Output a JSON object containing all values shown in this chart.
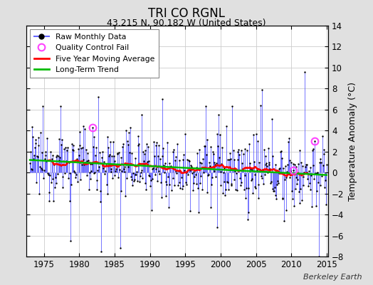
{
  "title": "TRI CO RGNL",
  "subtitle": "43.215 N, 90.182 W (United States)",
  "ylabel": "Temperature Anomaly (°C)",
  "credit": "Berkeley Earth",
  "xlim": [
    1972.5,
    2015.2
  ],
  "ylim": [
    -8,
    14
  ],
  "yticks": [
    -8,
    -6,
    -4,
    -2,
    0,
    2,
    4,
    6,
    8,
    10,
    12,
    14
  ],
  "xticks": [
    1975,
    1980,
    1985,
    1990,
    1995,
    2000,
    2005,
    2010,
    2015
  ],
  "fig_bg_color": "#e0e0e0",
  "plot_bg_color": "#ffffff",
  "raw_line_color": "#6666ff",
  "raw_dot_color": "#000000",
  "moving_avg_color": "#ff0000",
  "trend_color": "#00bb00",
  "qc_fail_color": "#ff44ff",
  "seed": 12345
}
